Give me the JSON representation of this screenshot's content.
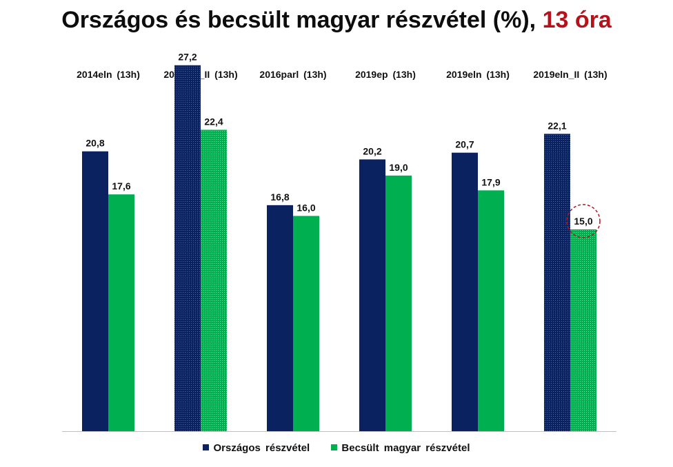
{
  "title": {
    "main": "Országos és becsült magyar részvétel (%),",
    "accent": "13 óra"
  },
  "colors": {
    "national": "#0b2260",
    "estimated": "#00b050",
    "highlight": "#b5121b"
  },
  "chart_data": {
    "type": "bar",
    "categories": [
      "2014eln (13h)",
      "2014eln_II (13h)",
      "2016parl (13h)",
      "2019ep (13h)",
      "2019eln (13h)",
      "2019eln_II (13h)"
    ],
    "series": [
      {
        "name": "Országos részvétel",
        "values": [
          20.8,
          27.2,
          16.8,
          20.2,
          20.7,
          22.1
        ],
        "labels": [
          "20,8",
          "27,2",
          "16,8",
          "20,2",
          "20,7",
          "22,1"
        ],
        "dotted": [
          false,
          true,
          false,
          false,
          false,
          true
        ]
      },
      {
        "name": "Becsült magyar részvétel",
        "values": [
          17.6,
          22.4,
          16.0,
          19.0,
          17.9,
          15.0
        ],
        "labels": [
          "17,6",
          "22,4",
          "16,0",
          "19,0",
          "17,9",
          "15,0"
        ],
        "dotted": [
          false,
          true,
          false,
          false,
          false,
          true
        ]
      }
    ],
    "ylim": [
      0,
      30
    ],
    "grid": false,
    "legend_position": "bottom",
    "category_labels_position": "top",
    "annotations": [
      {
        "type": "dashed-circle",
        "series": 1,
        "category": 5
      }
    ]
  }
}
